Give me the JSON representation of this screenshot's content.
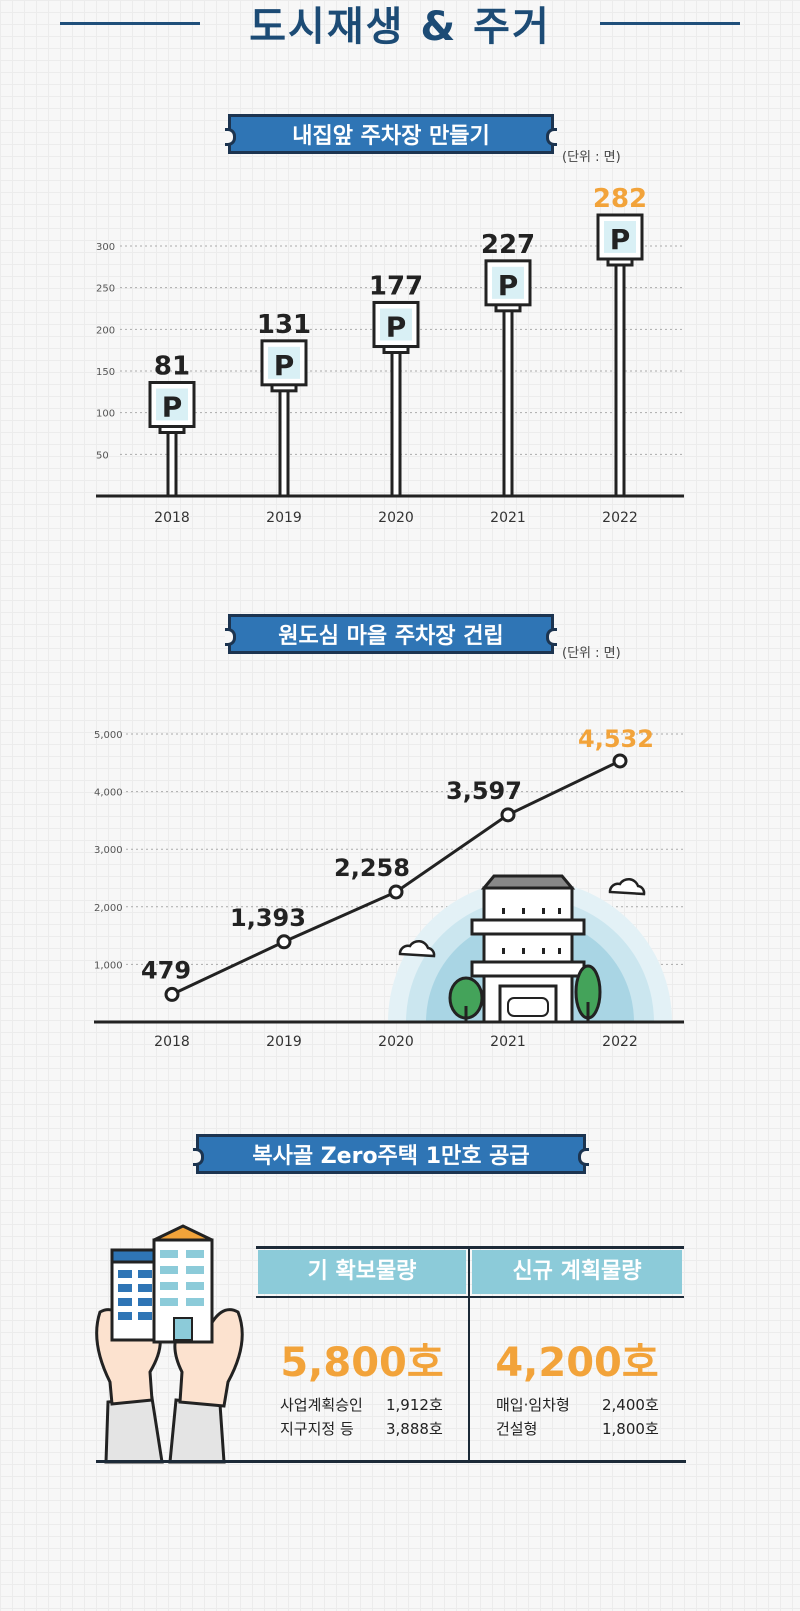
{
  "page_title": "도시재생 & 주거",
  "colors": {
    "accent": "#f2a33a",
    "banner": "#2f75b5",
    "navy": "#1c3450",
    "teal": "#8ccbd9"
  },
  "chart_data": [
    {
      "type": "bar",
      "title": "내집앞 주차장 만들기",
      "unit": "(단위 : 면)",
      "categories": [
        "2018",
        "2019",
        "2020",
        "2021",
        "2022"
      ],
      "values": [
        81,
        131,
        177,
        227,
        282
      ],
      "value_labels": [
        "81",
        "131",
        "177",
        "227",
        "282"
      ],
      "yticks": [
        "50",
        "100",
        "150",
        "200",
        "250",
        "300"
      ],
      "ylim": [
        0,
        300
      ],
      "grid": true,
      "icon": "parking-sign-icon",
      "mark_glyph": "P"
    },
    {
      "type": "line",
      "title": "원도심 마을 주차장 건립",
      "unit": "(단위 : 면)",
      "categories": [
        "2018",
        "2019",
        "2020",
        "2021",
        "2022"
      ],
      "values": [
        479,
        1393,
        2258,
        3597,
        4532
      ],
      "value_labels": [
        "479",
        "1,393",
        "2,258",
        "3,597",
        "4,532"
      ],
      "yticks": [
        "1,000",
        "2,000",
        "3,000",
        "4,000",
        "5,000"
      ],
      "ylim": [
        0,
        5000
      ],
      "grid": true,
      "illustration": "parking-building-icon"
    }
  ],
  "housing": {
    "title": "복사골 Zero주택 1만호 공급",
    "columns": [
      {
        "header": "기 확보물량",
        "total": "5,800호",
        "rows": [
          {
            "label": "사업계획승인",
            "value": "1,912호"
          },
          {
            "label": "지구지정 등",
            "value": "3,888호"
          }
        ]
      },
      {
        "header": "신규 계획물량",
        "total": "4,200호",
        "rows": [
          {
            "label": "매입·임차형",
            "value": "2,400호"
          },
          {
            "label": "건설형",
            "value": "1,800호"
          }
        ]
      }
    ],
    "illustration": "hands-holding-buildings-icon"
  }
}
